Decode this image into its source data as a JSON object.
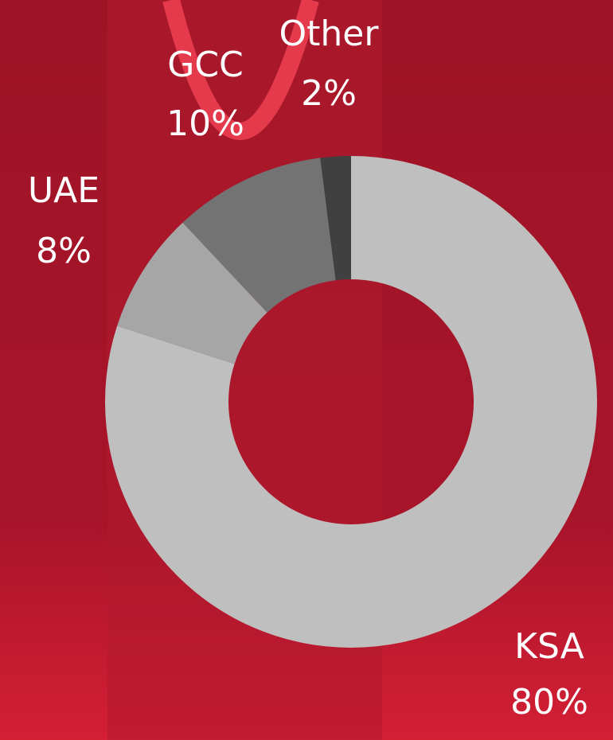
{
  "chart_data": {
    "type": "donut",
    "categories": [
      "KSA",
      "UAE",
      "GCC",
      "Other"
    ],
    "values": [
      80,
      8,
      10,
      2
    ],
    "value_labels": [
      "80%",
      "8%",
      "10%",
      "2%"
    ],
    "colors": [
      "#bfbfbf",
      "#a6a6a6",
      "#737373",
      "#404040"
    ]
  }
}
